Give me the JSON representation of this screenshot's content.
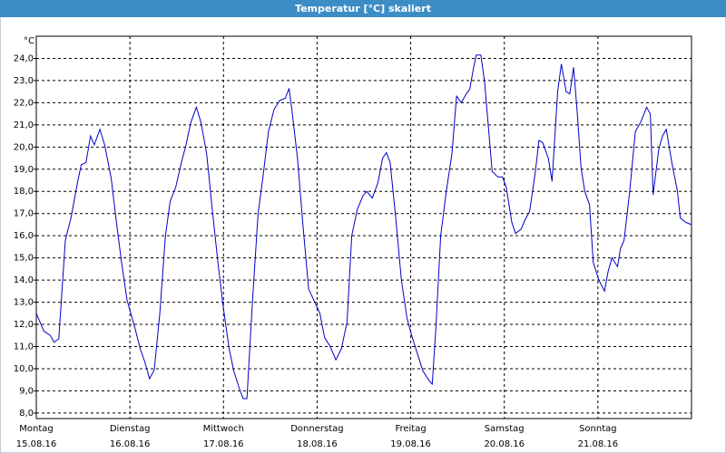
{
  "chart_data": {
    "type": "line",
    "title": "Temperatur [°C] skaliert",
    "ylabel": "°C",
    "color": "#0000c8",
    "grid": true,
    "xlim": [
      0,
      7
    ],
    "ylim": [
      7.75,
      25
    ],
    "yticks": [
      {
        "value": 8,
        "label": "8,0"
      },
      {
        "value": 9,
        "label": "9,0"
      },
      {
        "value": 10,
        "label": "10,0"
      },
      {
        "value": 11,
        "label": "11,0"
      },
      {
        "value": 12,
        "label": "12,0"
      },
      {
        "value": 13,
        "label": "13,0"
      },
      {
        "value": 14,
        "label": "14,0"
      },
      {
        "value": 15,
        "label": "15,0"
      },
      {
        "value": 16,
        "label": "16,0"
      },
      {
        "value": 17,
        "label": "17,0"
      },
      {
        "value": 18,
        "label": "18,0"
      },
      {
        "value": 19,
        "label": "19,0"
      },
      {
        "value": 20,
        "label": "20,0"
      },
      {
        "value": 21,
        "label": "21,0"
      },
      {
        "value": 22,
        "label": "22,0"
      },
      {
        "value": 23,
        "label": "23,0"
      },
      {
        "value": 24,
        "label": "24,0"
      }
    ],
    "xticks": [
      {
        "value": 0,
        "label": "Montag"
      },
      {
        "value": 1,
        "label": "Dienstag"
      },
      {
        "value": 2,
        "label": "Mittwoch"
      },
      {
        "value": 3,
        "label": "Donnerstag"
      },
      {
        "value": 4,
        "label": "Freitag"
      },
      {
        "value": 5,
        "label": "Samstag"
      },
      {
        "value": 6,
        "label": "Sonntag"
      }
    ],
    "xtick_dates": [
      "15.08.16",
      "16.08.16",
      "17.08.16",
      "18.08.16",
      "19.08.16",
      "20.08.16",
      "21.08.16"
    ],
    "x": [
      0,
      0.08,
      0.15,
      0.19,
      0.24,
      0.31,
      0.37,
      0.44,
      0.48,
      0.53,
      0.58,
      0.62,
      0.68,
      0.73,
      0.8,
      0.85,
      0.91,
      0.97,
      1.05,
      1.11,
      1.16,
      1.21,
      1.26,
      1.32,
      1.38,
      1.43,
      1.49,
      1.55,
      1.6,
      1.65,
      1.71,
      1.76,
      1.82,
      1.88,
      1.94,
      2.0,
      2.06,
      2.11,
      2.17,
      2.21,
      2.25,
      2.31,
      2.37,
      2.42,
      2.48,
      2.54,
      2.6,
      2.66,
      2.7,
      2.73,
      2.79,
      2.85,
      2.91,
      3.03,
      3.08,
      3.14,
      3.2,
      3.26,
      3.32,
      3.37,
      3.43,
      3.49,
      3.53,
      3.59,
      3.65,
      3.7,
      3.74,
      3.78,
      3.84,
      3.9,
      3.96,
      4.01,
      4.07,
      4.13,
      4.19,
      4.23,
      4.27,
      4.32,
      4.38,
      4.44,
      4.49,
      4.54,
      4.6,
      4.63,
      4.67,
      4.7,
      4.75,
      4.79,
      4.83,
      4.87,
      4.93,
      4.98,
      5.02,
      5.08,
      5.12,
      5.18,
      5.22,
      5.27,
      5.33,
      5.37,
      5.41,
      5.47,
      5.51,
      5.57,
      5.61,
      5.66,
      5.7,
      5.74,
      5.78,
      5.82,
      5.86,
      5.91,
      5.95,
      6.01,
      6.07,
      6.11,
      6.15,
      6.21,
      6.24,
      6.28,
      6.34,
      6.4,
      6.46,
      6.52,
      6.56,
      6.59,
      6.65,
      6.69,
      6.73,
      6.79,
      6.85,
      6.88,
      6.94,
      7.0
    ],
    "values": [
      12.5,
      11.7,
      11.5,
      11.2,
      11.35,
      15.8,
      16.8,
      18.4,
      19.2,
      19.3,
      20.5,
      20.1,
      20.8,
      20.1,
      18.6,
      16.8,
      14.8,
      13.1,
      11.9,
      10.9,
      10.3,
      9.55,
      9.95,
      12.5,
      16.0,
      17.55,
      18.2,
      19.3,
      20.1,
      21.1,
      21.8,
      21.1,
      19.7,
      17.2,
      14.8,
      12.7,
      10.9,
      9.9,
      9.1,
      8.65,
      8.65,
      13.1,
      17.0,
      18.6,
      20.7,
      21.7,
      22.1,
      22.2,
      22.65,
      21.7,
      19.5,
      16.4,
      13.6,
      12.5,
      11.4,
      11.0,
      10.4,
      10.9,
      12.1,
      16.0,
      17.2,
      17.8,
      18.0,
      17.7,
      18.4,
      19.5,
      19.75,
      19.3,
      16.8,
      14.0,
      12.3,
      11.5,
      10.7,
      9.9,
      9.5,
      9.3,
      11.9,
      16.0,
      18.0,
      19.7,
      22.3,
      22.0,
      22.45,
      22.6,
      23.55,
      24.15,
      24.15,
      22.9,
      20.9,
      18.9,
      18.65,
      18.65,
      18.2,
      16.6,
      16.1,
      16.3,
      16.7,
      17.1,
      18.85,
      20.3,
      20.2,
      19.5,
      18.45,
      22.5,
      23.75,
      22.5,
      22.4,
      23.6,
      21.5,
      19.05,
      18.0,
      17.4,
      14.8,
      14.0,
      13.5,
      14.4,
      15.0,
      14.6,
      15.4,
      15.8,
      18.0,
      20.7,
      21.15,
      21.8,
      21.5,
      17.85,
      19.9,
      20.5,
      20.8,
      19.3,
      18.0,
      16.8,
      16.6,
      16.5
    ]
  }
}
